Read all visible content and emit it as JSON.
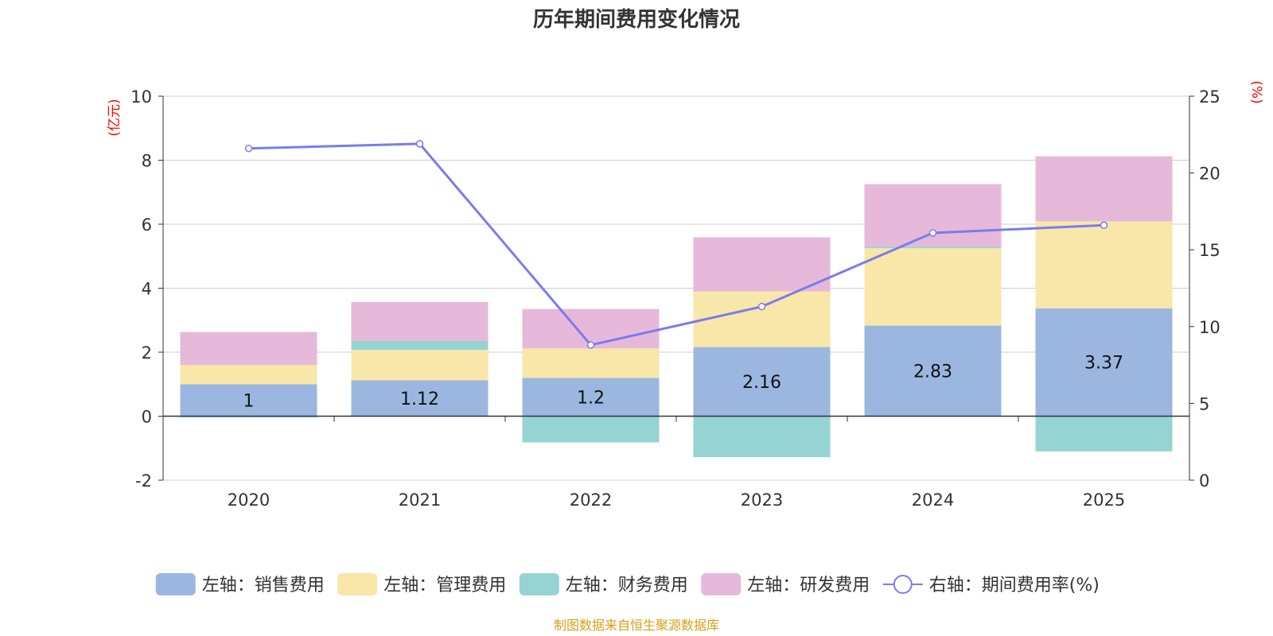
{
  "chart_data": {
    "type": "bar",
    "title": "历年期间费用变化情况",
    "categories": [
      "2020",
      "2021",
      "2022",
      "2023",
      "2024",
      "2025"
    ],
    "left_axis": {
      "unit": "(亿元)",
      "ylim": [
        -2,
        10
      ],
      "ticks": [
        "-2",
        "0",
        "2",
        "4",
        "6",
        "8",
        "10"
      ]
    },
    "right_axis": {
      "unit": "(%)",
      "ylim": [
        0,
        25
      ],
      "ticks": [
        "0",
        "5",
        "10",
        "15",
        "20",
        "25"
      ]
    },
    "series": [
      {
        "name": "左轴：销售费用",
        "color": "#9bb7e0",
        "values": [
          1.0,
          1.12,
          1.2,
          2.16,
          2.83,
          3.37
        ],
        "labels": [
          "1",
          "1.12",
          "1.2",
          "2.16",
          "2.83",
          "3.37"
        ]
      },
      {
        "name": "左轴：管理费用",
        "color": "#f8e7a8",
        "values": [
          0.6,
          0.95,
          0.92,
          1.74,
          2.42,
          2.72
        ]
      },
      {
        "name": "左轴：财务费用",
        "color": "#96d3d3",
        "values": [
          -0.04,
          0.28,
          -0.82,
          -1.28,
          0.05,
          -1.1
        ]
      },
      {
        "name": "左轴：研发费用",
        "color": "#e6b9da",
        "values": [
          1.03,
          1.22,
          1.23,
          1.69,
          1.95,
          2.03
        ]
      }
    ],
    "line": {
      "name": "右轴：期间费用率(%)",
      "color": "#7b7bef",
      "values": [
        21.6,
        21.9,
        8.8,
        11.3,
        16.1,
        16.6
      ]
    },
    "legend_position": "bottom",
    "grid": true
  },
  "source_text": "制图数据来自恒生聚源数据库",
  "source_color": "#d4a017"
}
